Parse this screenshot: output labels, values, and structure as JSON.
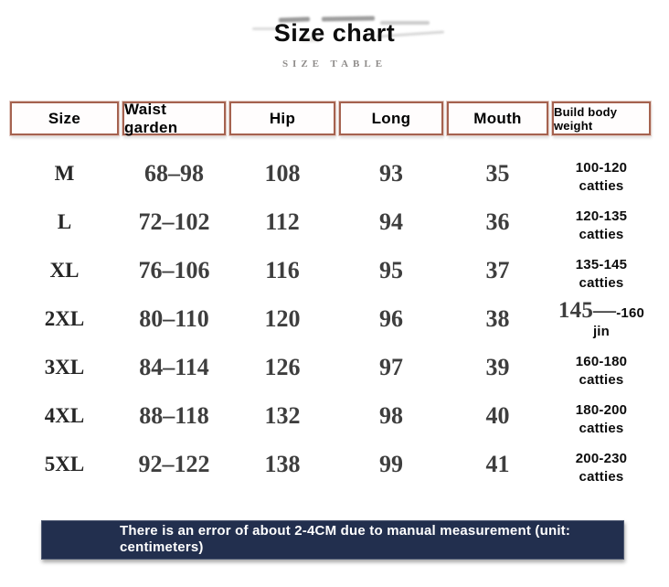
{
  "page": {
    "title": "Size chart",
    "subtitle": "SIZE TABLE"
  },
  "table": {
    "headers": [
      "Size",
      "Waist garden",
      "Hip",
      "Long",
      "Mouth",
      "Build body weight"
    ],
    "rows": [
      {
        "size": "M",
        "waist": "68–98",
        "hip": "108",
        "long": "93",
        "mouth": "35",
        "weight_serif": "",
        "weight": "100-120 catties"
      },
      {
        "size": "L",
        "waist": "72–102",
        "hip": "112",
        "long": "94",
        "mouth": "36",
        "weight_serif": "",
        "weight": "120-135 catties"
      },
      {
        "size": "XL",
        "waist": "76–106",
        "hip": "116",
        "long": "95",
        "mouth": "37",
        "weight_serif": "",
        "weight": "135-145 catties"
      },
      {
        "size": "2XL",
        "waist": "80–110",
        "hip": "120",
        "long": "96",
        "mouth": "38",
        "weight_serif": "145—",
        "weight": "-160 jin"
      },
      {
        "size": "3XL",
        "waist": "84–114",
        "hip": "126",
        "long": "97",
        "mouth": "39",
        "weight_serif": "",
        "weight": "160-180 catties"
      },
      {
        "size": "4XL",
        "waist": "88–118",
        "hip": "132",
        "long": "98",
        "mouth": "40",
        "weight_serif": "",
        "weight": "180-200 catties"
      },
      {
        "size": "5XL",
        "waist": "92–122",
        "hip": "138",
        "long": "99",
        "mouth": "41",
        "weight_serif": "",
        "weight": "200-230 catties"
      }
    ]
  },
  "footer": {
    "note_line1": "There is an error of about 2-4CM due to manual measurement (unit:",
    "note_line2": "centimeters)"
  },
  "chart_data": {
    "type": "table",
    "title": "Size chart",
    "subtitle": "SIZE TABLE",
    "columns": [
      "Size",
      "Waist garden",
      "Hip",
      "Long",
      "Mouth",
      "Build body weight"
    ],
    "rows": [
      [
        "M",
        "68–98",
        "108",
        "93",
        "35",
        "100-120 catties"
      ],
      [
        "L",
        "72–102",
        "112",
        "94",
        "36",
        "120-135 catties"
      ],
      [
        "XL",
        "76–106",
        "116",
        "95",
        "37",
        "135-145 catties"
      ],
      [
        "2XL",
        "80–110",
        "120",
        "96",
        "38",
        "145—-160 jin"
      ],
      [
        "3XL",
        "84–114",
        "126",
        "97",
        "39",
        "160-180 catties"
      ],
      [
        "4XL",
        "88–118",
        "132",
        "98",
        "40",
        "180-200 catties"
      ],
      [
        "5XL",
        "92–122",
        "138",
        "99",
        "41",
        "200-230 catties"
      ]
    ],
    "note": "There is an error of about 2-4CM due to manual measurement (unit: centimeters)"
  },
  "colors": {
    "header-border": "#a5624f",
    "header-border-glow": "#e4cdc6",
    "banner-bg": "#222f4e",
    "banner-text": "#ffffff",
    "title-text": "#0d0d0d",
    "subtitle-text": "#8f8c8a",
    "number-text": "#3e3e3e"
  }
}
